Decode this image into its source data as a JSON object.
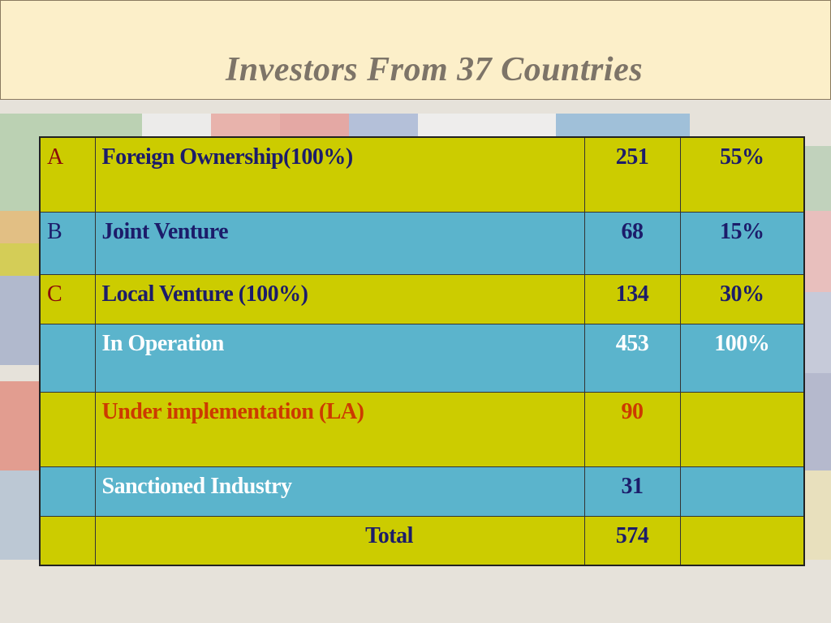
{
  "header": {
    "title": "Investors From 37 Countries"
  },
  "table": {
    "rows": [
      {
        "label": "A",
        "name": "Foreign Ownership(100%)",
        "count": 251,
        "share": "55%"
      },
      {
        "label": "B",
        "name": "Joint Venture",
        "count": 68,
        "share": "15%"
      },
      {
        "label": "C",
        "name": "Local Venture (100%)",
        "count": 134,
        "share": "30%"
      },
      {
        "name": "In Operation",
        "count": 453,
        "share": "100%"
      },
      {
        "name": "Under implementation (LA)",
        "count": 90
      },
      {
        "name": "Sanctioned Industry",
        "count": 31
      },
      {
        "name": "Total",
        "count": 574
      }
    ]
  }
}
